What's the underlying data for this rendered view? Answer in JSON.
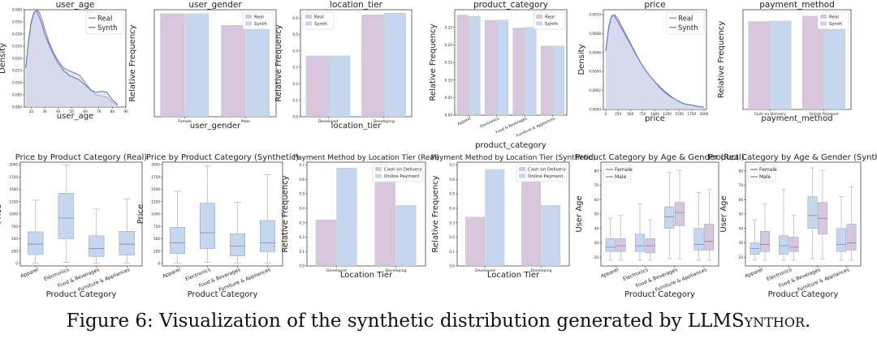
{
  "caption": {
    "prefix": "Figure 6: Visualization of the synthetic distribution generated by ",
    "name": "LLMSynthor",
    "suffix": "."
  },
  "colors": {
    "real": "#d8c6dc",
    "synth": "#c6d6ee",
    "real_line": "#8f7aa0",
    "synth_line": "#4f7cc0",
    "cod": "#d8c6dc",
    "online": "#c6d6ee",
    "female": "#c6d6ee",
    "male": "#d8c6dc"
  },
  "chart_data": [
    {
      "type": "area",
      "title": "user_age",
      "xlabel": "user_age",
      "ylabel": "Density",
      "xlim": [
        15,
        90
      ],
      "ylim": [
        0,
        0.04
      ],
      "xticks": [
        "20",
        "30",
        "40",
        "50",
        "60",
        "70",
        "80",
        "90"
      ],
      "xtick_values": [
        20,
        30,
        40,
        50,
        60,
        70,
        80,
        90
      ],
      "yticks": [
        "0.000",
        "0.005",
        "0.010",
        "0.015",
        "0.020",
        "0.025",
        "0.030",
        "0.035",
        "0.040"
      ],
      "ytick_values": [
        0,
        0.005,
        0.01,
        0.015,
        0.02,
        0.025,
        0.03,
        0.035,
        0.04
      ],
      "legend": [
        "Real",
        "Synth"
      ],
      "x": [
        16,
        18,
        20,
        22,
        24,
        26,
        28,
        30,
        33,
        36,
        40,
        44,
        48,
        52,
        56,
        60,
        64,
        68,
        72,
        76,
        80,
        84
      ],
      "series": [
        {
          "name": "Real",
          "values": [
            0.016,
            0.026,
            0.034,
            0.038,
            0.04,
            0.039,
            0.036,
            0.032,
            0.027,
            0.023,
            0.019,
            0.016,
            0.015,
            0.014,
            0.013,
            0.01,
            0.007,
            0.005,
            0.0045,
            0.004,
            0.002,
            0.0005
          ]
        },
        {
          "name": "Synth",
          "values": [
            0.016,
            0.027,
            0.035,
            0.039,
            0.0395,
            0.037,
            0.034,
            0.03,
            0.026,
            0.022,
            0.018,
            0.015,
            0.013,
            0.012,
            0.011,
            0.009,
            0.007,
            0.006,
            0.0065,
            0.006,
            0.003,
            0.001
          ]
        }
      ]
    },
    {
      "type": "bar",
      "title": "user_gender",
      "xlabel": "user_gender",
      "ylabel": "Relative Frequency",
      "categories": [
        "Female",
        "Male"
      ],
      "ylim": [
        0,
        0.55
      ],
      "legend": [
        "Real",
        "Synth"
      ],
      "series": [
        {
          "name": "Real",
          "values": [
            0.53,
            0.47
          ]
        },
        {
          "name": "Synth",
          "values": [
            0.53,
            0.47
          ]
        }
      ]
    },
    {
      "type": "bar",
      "title": "location_tier",
      "xlabel": "location_tier",
      "ylabel": "Relative Frequency",
      "categories": [
        "Developed",
        "Developing"
      ],
      "ylim": [
        0,
        0.65
      ],
      "yticks": [
        "0.0",
        "0.1",
        "0.2",
        "0.3",
        "0.4",
        "0.5",
        "0.6"
      ],
      "ytick_values": [
        0,
        0.1,
        0.2,
        0.3,
        0.4,
        0.5,
        0.6
      ],
      "legend": [
        "Real",
        "Synth"
      ],
      "series": [
        {
          "name": "Real",
          "values": [
            0.37,
            0.62
          ]
        },
        {
          "name": "Synth",
          "values": [
            0.37,
            0.63
          ]
        }
      ]
    },
    {
      "type": "bar",
      "title": "product_category",
      "xlabel": "product_category",
      "ylabel": "Relative Frequency",
      "categories": [
        "Apparel",
        "Electronics",
        "Food & Beverages",
        "Furniture & Appliances"
      ],
      "ylim": [
        0,
        0.3
      ],
      "yticks": [
        "0.00",
        "0.05",
        "0.10",
        "0.15",
        "0.20",
        "0.25"
      ],
      "ytick_values": [
        0,
        0.05,
        0.1,
        0.15,
        0.2,
        0.25
      ],
      "legend": [
        "Real",
        "Synth"
      ],
      "series": [
        {
          "name": "Real",
          "values": [
            0.285,
            0.27,
            0.248,
            0.197
          ]
        },
        {
          "name": "Synth",
          "values": [
            0.281,
            0.271,
            0.25,
            0.197
          ]
        }
      ]
    },
    {
      "type": "area",
      "title": "price",
      "xlabel": "price",
      "ylabel": "Density",
      "xlim": [
        -50,
        2050
      ],
      "ylim": [
        0,
        0.00105
      ],
      "xticks": [
        "0",
        "250",
        "500",
        "750",
        "1000",
        "1250",
        "1500",
        "1750",
        "2000"
      ],
      "xtick_values": [
        0,
        250,
        500,
        750,
        1000,
        1250,
        1500,
        1750,
        2000
      ],
      "yticks": [
        "0.0000",
        "0.0002",
        "0.0004",
        "0.0006",
        "0.0008",
        "0.0010"
      ],
      "ytick_values": [
        0,
        0.0002,
        0.0004,
        0.0006,
        0.0008,
        0.001
      ],
      "legend": [
        "Real",
        "Synth"
      ],
      "x": [
        0,
        60,
        120,
        180,
        240,
        300,
        400,
        500,
        600,
        700,
        800,
        900,
        1000,
        1100,
        1200,
        1300,
        1400,
        1500,
        1600,
        1700,
        1800,
        1900,
        2000
      ],
      "series": [
        {
          "name": "Real",
          "values": [
            0.00061,
            0.00085,
            0.00098,
            0.001,
            0.00096,
            0.0009,
            0.0008,
            0.0007,
            0.0006,
            0.0005,
            0.00042,
            0.00035,
            0.00029,
            0.00024,
            0.00019,
            0.00015,
            0.00011,
            8e-05,
            6e-05,
            5e-05,
            4e-05,
            3e-05,
            2.5e-05
          ]
        },
        {
          "name": "Synth",
          "values": [
            0.00062,
            0.00088,
            0.00099,
            0.00098,
            0.00093,
            0.00087,
            0.00078,
            0.00069,
            0.00059,
            0.0005,
            0.00042,
            0.00035,
            0.00029,
            0.00023,
            0.00018,
            0.00014,
            0.00011,
            8e-05,
            6e-05,
            5e-05,
            4e-05,
            3e-05,
            2.5e-05
          ]
        }
      ]
    },
    {
      "type": "bar",
      "title": "payment_method",
      "xlabel": "payment_method",
      "ylabel": "Relative Frequency",
      "categories": [
        "Cash on Delivery",
        "Online Payment"
      ],
      "ylim": [
        0,
        0.55
      ],
      "legend": [
        "Real",
        "Synth"
      ],
      "series": [
        {
          "name": "Real",
          "values": [
            0.485,
            0.515
          ]
        },
        {
          "name": "Synth",
          "values": [
            0.488,
            0.512
          ]
        }
      ]
    },
    {
      "type": "box",
      "title": "Price by Product Category (Real)",
      "xlabel": "Product Category",
      "ylabel": "Price",
      "categories": [
        "Apparel",
        "Electronics",
        "Food & Beverages",
        "Furniture & Appliances"
      ],
      "ylim": [
        -50,
        2050
      ],
      "yticks": [
        "0",
        "250",
        "500",
        "750",
        "1000",
        "1250",
        "1500",
        "1750",
        "2000"
      ],
      "ytick_values": [
        0,
        250,
        500,
        750,
        1000,
        1250,
        1500,
        1750,
        2000
      ],
      "boxes": [
        {
          "low": 10,
          "q1": 180,
          "median": 390,
          "q3": 640,
          "high": 1280
        },
        {
          "low": 20,
          "q1": 500,
          "median": 920,
          "q3": 1420,
          "high": 1990
        },
        {
          "low": 10,
          "q1": 140,
          "median": 300,
          "q3": 560,
          "high": 1100
        },
        {
          "low": 10,
          "q1": 170,
          "median": 390,
          "q3": 650,
          "high": 1310
        }
      ]
    },
    {
      "type": "box",
      "title": "Price by Product Category (Synthetic)",
      "xlabel": "Product Category",
      "ylabel": "Price",
      "categories": [
        "Apparel",
        "Electronics",
        "Food & Beverages",
        "Furniture & Appliances"
      ],
      "ylim": [
        -50,
        2050
      ],
      "yticks": [
        "0",
        "250",
        "500",
        "750",
        "1000",
        "1250",
        "1500",
        "1750",
        "2000"
      ],
      "ytick_values": [
        0,
        250,
        500,
        750,
        1000,
        1250,
        1500,
        1750,
        2000
      ],
      "boxes": [
        {
          "low": 10,
          "q1": 200,
          "median": 420,
          "q3": 730,
          "high": 1460
        },
        {
          "low": 20,
          "q1": 300,
          "median": 620,
          "q3": 1220,
          "high": 1970
        },
        {
          "low": 10,
          "q1": 150,
          "median": 350,
          "q3": 600,
          "high": 1240
        },
        {
          "low": 10,
          "q1": 240,
          "median": 420,
          "q3": 870,
          "high": 1800
        }
      ]
    },
    {
      "type": "bar",
      "title": "Payment Method by Location Tier (Real)",
      "xlabel": "Location Tier",
      "ylabel": "Relative Frequency",
      "categories": [
        "Developed",
        "Developing"
      ],
      "ylim": [
        0,
        0.72
      ],
      "yticks": [
        "0.0",
        "0.1",
        "0.2",
        "0.3",
        "0.4",
        "0.5",
        "0.6",
        "0.7"
      ],
      "ytick_values": [
        0,
        0.1,
        0.2,
        0.3,
        0.4,
        0.5,
        0.6,
        0.7
      ],
      "legend": [
        "Cash on Delivery",
        "Online Payment"
      ],
      "series": [
        {
          "name": "Cash on Delivery",
          "values": [
            0.32,
            0.58
          ]
        },
        {
          "name": "Online Payment",
          "values": [
            0.68,
            0.42
          ]
        }
      ]
    },
    {
      "type": "bar",
      "title": "Payment Method by Location Tier (Synthetic)",
      "xlabel": "Location Tier",
      "ylabel": "Relative Frequency",
      "categories": [
        "Developed",
        "Developing"
      ],
      "ylim": [
        0,
        0.72
      ],
      "yticks": [
        "0.0",
        "0.1",
        "0.2",
        "0.3",
        "0.4",
        "0.5",
        "0.6",
        "0.7"
      ],
      "ytick_values": [
        0,
        0.1,
        0.2,
        0.3,
        0.4,
        0.5,
        0.6,
        0.7
      ],
      "legend": [
        "Cash on Delivery",
        "Online Payment"
      ],
      "series": [
        {
          "name": "Cash on Delivery",
          "values": [
            0.34,
            0.6
          ]
        },
        {
          "name": "Online Payment",
          "values": [
            0.67,
            0.42
          ]
        }
      ]
    },
    {
      "type": "box",
      "title": "Product Category by Age & Gender (Real)",
      "xlabel": "Product Category",
      "ylabel": "User Age",
      "categories": [
        "Apparel",
        "Electronics",
        "Food & Beverages",
        "Furniture & Appliances"
      ],
      "ylim": [
        14,
        86
      ],
      "yticks": [
        "20",
        "30",
        "40",
        "50",
        "60",
        "70",
        "80"
      ],
      "ytick_values": [
        20,
        30,
        40,
        50,
        60,
        70,
        80
      ],
      "legend": [
        "Female",
        "Male"
      ],
      "groups": [
        {
          "name": "Female",
          "boxes": [
            {
              "low": 18,
              "q1": 24,
              "median": 27,
              "q3": 33,
              "high": 47
            },
            {
              "low": 18,
              "q1": 24,
              "median": 28,
              "q3": 36,
              "high": 57
            },
            {
              "low": 19,
              "q1": 40,
              "median": 48,
              "q3": 55,
              "high": 79
            },
            {
              "low": 18,
              "q1": 25,
              "median": 29,
              "q3": 40,
              "high": 65
            }
          ]
        },
        {
          "name": "Male",
          "boxes": [
            {
              "low": 18,
              "q1": 24,
              "median": 28,
              "q3": 33,
              "high": 49
            },
            {
              "low": 18,
              "q1": 23,
              "median": 28,
              "q3": 33,
              "high": 46
            },
            {
              "low": 19,
              "q1": 42,
              "median": 51,
              "q3": 58,
              "high": 80
            },
            {
              "low": 18,
              "q1": 25,
              "median": 31,
              "q3": 43,
              "high": 67
            }
          ]
        }
      ]
    },
    {
      "type": "box",
      "title": "Product Category by Age & Gender (Synthetic)",
      "xlabel": "Product Category",
      "ylabel": "User Age",
      "categories": [
        "Apparel",
        "Electronics",
        "Food & Beverages",
        "Furniture & Appliances"
      ],
      "ylim": [
        14,
        86
      ],
      "yticks": [
        "20",
        "30",
        "40",
        "50",
        "60",
        "70",
        "80"
      ],
      "ytick_values": [
        20,
        30,
        40,
        50,
        60,
        70,
        80
      ],
      "legend": [
        "Female",
        "Male"
      ],
      "groups": [
        {
          "name": "Female",
          "boxes": [
            {
              "low": 18,
              "q1": 22,
              "median": 26,
              "q3": 30,
              "high": 46
            },
            {
              "low": 18,
              "q1": 22,
              "median": 28,
              "q3": 35,
              "high": 67
            },
            {
              "low": 19,
              "q1": 40,
              "median": 49,
              "q3": 62,
              "high": 82
            },
            {
              "low": 18,
              "q1": 24,
              "median": 29,
              "q3": 40,
              "high": 62
            }
          ]
        },
        {
          "name": "Male",
          "boxes": [
            {
              "low": 18,
              "q1": 24,
              "median": 29,
              "q3": 38,
              "high": 57
            },
            {
              "low": 18,
              "q1": 24,
              "median": 27,
              "q3": 34,
              "high": 49
            },
            {
              "low": 19,
              "q1": 36,
              "median": 47,
              "q3": 58,
              "high": 80
            },
            {
              "low": 18,
              "q1": 25,
              "median": 30,
              "q3": 43,
              "high": 69
            }
          ]
        }
      ]
    }
  ]
}
